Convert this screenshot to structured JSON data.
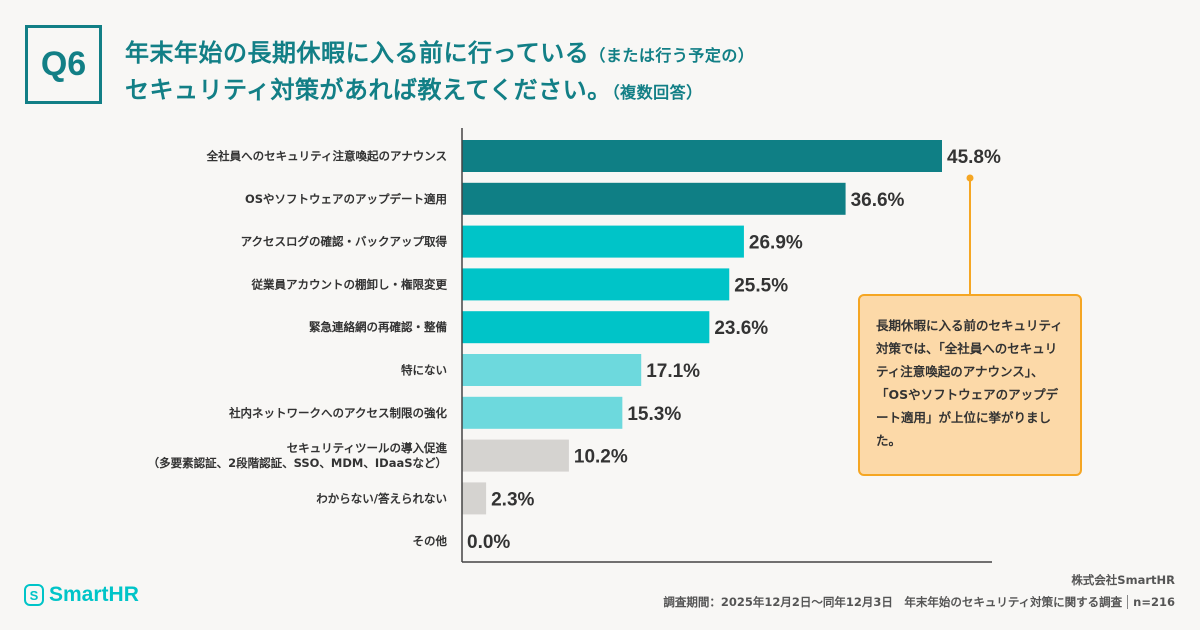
{
  "header": {
    "question_label": "Q6",
    "title_line1": "年末年始の長期休暇に入る前に行っている",
    "title_line1_note": "（または行う予定の）",
    "title_line2": "セキュリティ対策があれば教えてください。",
    "title_line2_note": "（複数回答）"
  },
  "chart_data": {
    "type": "bar",
    "orientation": "horizontal",
    "xlim": [
      0,
      50
    ],
    "grid": false,
    "categories": [
      "全社員へのセキュリティ注意喚起のアナウンス",
      "OSやソフトウェアのアップデート適用",
      "アクセスログの確認・バックアップ取得",
      "従業員アカウントの棚卸し・権限変更",
      "緊急連絡網の再確認・整備",
      "特にない",
      "社内ネットワークへのアクセス制限の強化",
      "セキュリティツールの導入促進\n（多要素認証、2段階認証、SSO、MDM、IDaaSなど）",
      "わからない/答えられない",
      "その他"
    ],
    "values": [
      45.8,
      36.6,
      26.9,
      25.5,
      23.6,
      17.1,
      15.3,
      10.2,
      2.3,
      0.0
    ],
    "data_labels": [
      "45.8%",
      "36.6%",
      "26.9%",
      "25.5%",
      "23.6%",
      "17.1%",
      "15.3%",
      "10.2%",
      "2.3%",
      "0.0%"
    ],
    "bar_colors": [
      "#0f7f85",
      "#0f7f85",
      "#00c4c8",
      "#00c4c8",
      "#00c4c8",
      "#6dd9dd",
      "#6dd9dd",
      "#d5d3d0",
      "#d5d3d0",
      "#d5d3d0"
    ]
  },
  "callout": {
    "text": "長期休暇に入る前のセキュリティ対策では、「全社員へのセキュリティ注意喚起のアナウンス」、「OSやソフトウェアのアップデート適用」が上位に挙がりました。",
    "color": "#f5a623"
  },
  "footer": {
    "logo": "SmartHR",
    "company": "株式会社SmartHR",
    "survey": "調査期間：2025年12月2日〜同年12月3日　年末年始のセキュリティ対策に関する調査",
    "n": "n=216"
  }
}
